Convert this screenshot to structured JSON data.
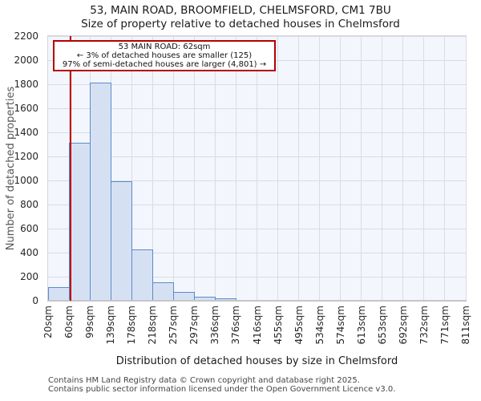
{
  "header": {
    "title": "53, MAIN ROAD, BROOMFIELD, CHELMSFORD, CM1 7BU",
    "subtitle": "Size of property relative to detached houses in Chelmsford"
  },
  "annotation": {
    "line1": "53 MAIN ROAD: 62sqm",
    "line2": "← 3% of detached houses are smaller (125)",
    "line3": "97% of semi-detached houses are larger (4,801) →"
  },
  "chart_data": {
    "type": "bar",
    "title": "53, MAIN ROAD, BROOMFIELD, CHELMSFORD, CM1 7BU",
    "subtitle": "Size of property relative to detached houses in Chelmsford",
    "xlabel": "Distribution of detached houses by size in Chelmsford",
    "ylabel": "Number of detached properties",
    "bin_edges": [
      20,
      60,
      99,
      139,
      178,
      218,
      257,
      297,
      336,
      376,
      416,
      455,
      495,
      534,
      574,
      613,
      653,
      692,
      732,
      771,
      811
    ],
    "categories": [
      "20sqm",
      "60sqm",
      "99sqm",
      "139sqm",
      "178sqm",
      "218sqm",
      "257sqm",
      "297sqm",
      "336sqm",
      "376sqm",
      "416sqm",
      "455sqm",
      "495sqm",
      "534sqm",
      "574sqm",
      "613sqm",
      "653sqm",
      "692sqm",
      "732sqm",
      "771sqm",
      "811sqm"
    ],
    "values": [
      110,
      1310,
      1810,
      990,
      425,
      155,
      75,
      35,
      20,
      0,
      0,
      0,
      0,
      0,
      0,
      0,
      0,
      0,
      0,
      0
    ],
    "ylim": [
      0,
      2200
    ],
    "ytick_step": 200,
    "grid": true,
    "legend_position": "none",
    "marker": {
      "sqm": 62,
      "label": "53 MAIN ROAD: 62sqm"
    }
  },
  "footer": {
    "line1": "Contains HM Land Registry data © Crown copyright and database right 2025.",
    "line2": "Contains public sector information licensed under the Open Government Licence v3.0."
  },
  "colors": {
    "bar_fill": "#d5e1f3",
    "bar_border": "#5d8ac8",
    "plot_bg": "#f3f6fc",
    "grid": "#d9dce3",
    "marker": "#c00000",
    "annotation_border": "#b40000"
  }
}
